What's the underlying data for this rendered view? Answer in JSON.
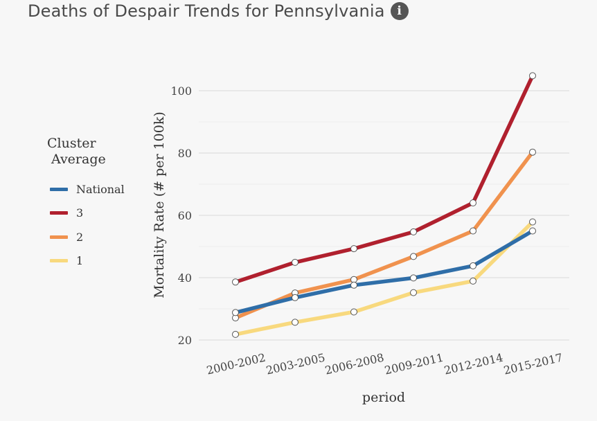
{
  "title": "Deaths of Despair Trends for Pennsylvania",
  "info_icon": "info-icon",
  "legend_title": [
    "Cluster",
    "Average"
  ],
  "chart_data": {
    "type": "line",
    "categories": [
      "2000-2002",
      "2003-2005",
      "2006-2008",
      "2009-2011",
      "2012-2014",
      "2015-2017"
    ],
    "xlabel": "period",
    "ylabel": "Mortality Rate (# per 100k)",
    "ylim": [
      18,
      108
    ],
    "yticks": [
      20,
      40,
      60,
      80,
      100
    ],
    "grid": true,
    "legend_position": "left",
    "series": [
      {
        "name": "National",
        "color": "#2f6ea8",
        "values": [
          28.8,
          33.6,
          37.6,
          39.9,
          43.8,
          55.0
        ]
      },
      {
        "name": "3",
        "color": "#b0202e",
        "values": [
          38.6,
          44.9,
          49.3,
          54.7,
          64.0,
          104.8
        ]
      },
      {
        "name": "2",
        "color": "#f0924e",
        "values": [
          27.1,
          35.1,
          39.4,
          46.8,
          55.0,
          80.3
        ]
      },
      {
        "name": "1",
        "color": "#f8d97e",
        "values": [
          21.8,
          25.7,
          29.0,
          35.2,
          38.9,
          57.9
        ]
      }
    ]
  }
}
